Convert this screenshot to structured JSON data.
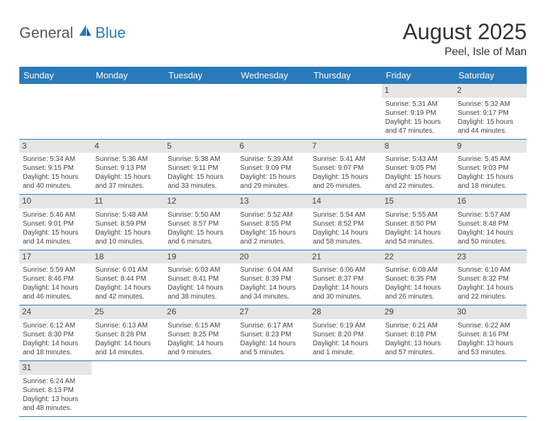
{
  "logo": {
    "text1": "General",
    "text2": "Blue"
  },
  "title": "August 2025",
  "subtitle": "Peel, Isle of Man",
  "colors": {
    "header_bg": "#2a7ab9",
    "header_fg": "#ffffff",
    "daynum_bg": "#e5e5e5",
    "row_border": "#2a7ab9",
    "text": "#444444"
  },
  "dayHeaders": [
    "Sunday",
    "Monday",
    "Tuesday",
    "Wednesday",
    "Thursday",
    "Friday",
    "Saturday"
  ],
  "weeks": [
    [
      null,
      null,
      null,
      null,
      null,
      {
        "n": "1",
        "sr": "Sunrise: 5:31 AM",
        "ss": "Sunset: 9:19 PM",
        "d1": "Daylight: 15 hours",
        "d2": "and 47 minutes."
      },
      {
        "n": "2",
        "sr": "Sunrise: 5:32 AM",
        "ss": "Sunset: 9:17 PM",
        "d1": "Daylight: 15 hours",
        "d2": "and 44 minutes."
      }
    ],
    [
      {
        "n": "3",
        "sr": "Sunrise: 5:34 AM",
        "ss": "Sunset: 9:15 PM",
        "d1": "Daylight: 15 hours",
        "d2": "and 40 minutes."
      },
      {
        "n": "4",
        "sr": "Sunrise: 5:36 AM",
        "ss": "Sunset: 9:13 PM",
        "d1": "Daylight: 15 hours",
        "d2": "and 37 minutes."
      },
      {
        "n": "5",
        "sr": "Sunrise: 5:38 AM",
        "ss": "Sunset: 9:11 PM",
        "d1": "Daylight: 15 hours",
        "d2": "and 33 minutes."
      },
      {
        "n": "6",
        "sr": "Sunrise: 5:39 AM",
        "ss": "Sunset: 9:09 PM",
        "d1": "Daylight: 15 hours",
        "d2": "and 29 minutes."
      },
      {
        "n": "7",
        "sr": "Sunrise: 5:41 AM",
        "ss": "Sunset: 9:07 PM",
        "d1": "Daylight: 15 hours",
        "d2": "and 26 minutes."
      },
      {
        "n": "8",
        "sr": "Sunrise: 5:43 AM",
        "ss": "Sunset: 9:05 PM",
        "d1": "Daylight: 15 hours",
        "d2": "and 22 minutes."
      },
      {
        "n": "9",
        "sr": "Sunrise: 5:45 AM",
        "ss": "Sunset: 9:03 PM",
        "d1": "Daylight: 15 hours",
        "d2": "and 18 minutes."
      }
    ],
    [
      {
        "n": "10",
        "sr": "Sunrise: 5:46 AM",
        "ss": "Sunset: 9:01 PM",
        "d1": "Daylight: 15 hours",
        "d2": "and 14 minutes."
      },
      {
        "n": "11",
        "sr": "Sunrise: 5:48 AM",
        "ss": "Sunset: 8:59 PM",
        "d1": "Daylight: 15 hours",
        "d2": "and 10 minutes."
      },
      {
        "n": "12",
        "sr": "Sunrise: 5:50 AM",
        "ss": "Sunset: 8:57 PM",
        "d1": "Daylight: 15 hours",
        "d2": "and 6 minutes."
      },
      {
        "n": "13",
        "sr": "Sunrise: 5:52 AM",
        "ss": "Sunset: 8:55 PM",
        "d1": "Daylight: 15 hours",
        "d2": "and 2 minutes."
      },
      {
        "n": "14",
        "sr": "Sunrise: 5:54 AM",
        "ss": "Sunset: 8:52 PM",
        "d1": "Daylight: 14 hours",
        "d2": "and 58 minutes."
      },
      {
        "n": "15",
        "sr": "Sunrise: 5:55 AM",
        "ss": "Sunset: 8:50 PM",
        "d1": "Daylight: 14 hours",
        "d2": "and 54 minutes."
      },
      {
        "n": "16",
        "sr": "Sunrise: 5:57 AM",
        "ss": "Sunset: 8:48 PM",
        "d1": "Daylight: 14 hours",
        "d2": "and 50 minutes."
      }
    ],
    [
      {
        "n": "17",
        "sr": "Sunrise: 5:59 AM",
        "ss": "Sunset: 8:46 PM",
        "d1": "Daylight: 14 hours",
        "d2": "and 46 minutes."
      },
      {
        "n": "18",
        "sr": "Sunrise: 6:01 AM",
        "ss": "Sunset: 8:44 PM",
        "d1": "Daylight: 14 hours",
        "d2": "and 42 minutes."
      },
      {
        "n": "19",
        "sr": "Sunrise: 6:03 AM",
        "ss": "Sunset: 8:41 PM",
        "d1": "Daylight: 14 hours",
        "d2": "and 38 minutes."
      },
      {
        "n": "20",
        "sr": "Sunrise: 6:04 AM",
        "ss": "Sunset: 8:39 PM",
        "d1": "Daylight: 14 hours",
        "d2": "and 34 minutes."
      },
      {
        "n": "21",
        "sr": "Sunrise: 6:06 AM",
        "ss": "Sunset: 8:37 PM",
        "d1": "Daylight: 14 hours",
        "d2": "and 30 minutes."
      },
      {
        "n": "22",
        "sr": "Sunrise: 6:08 AM",
        "ss": "Sunset: 8:35 PM",
        "d1": "Daylight: 14 hours",
        "d2": "and 26 minutes."
      },
      {
        "n": "23",
        "sr": "Sunrise: 6:10 AM",
        "ss": "Sunset: 8:32 PM",
        "d1": "Daylight: 14 hours",
        "d2": "and 22 minutes."
      }
    ],
    [
      {
        "n": "24",
        "sr": "Sunrise: 6:12 AM",
        "ss": "Sunset: 8:30 PM",
        "d1": "Daylight: 14 hours",
        "d2": "and 18 minutes."
      },
      {
        "n": "25",
        "sr": "Sunrise: 6:13 AM",
        "ss": "Sunset: 8:28 PM",
        "d1": "Daylight: 14 hours",
        "d2": "and 14 minutes."
      },
      {
        "n": "26",
        "sr": "Sunrise: 6:15 AM",
        "ss": "Sunset: 8:25 PM",
        "d1": "Daylight: 14 hours",
        "d2": "and 9 minutes."
      },
      {
        "n": "27",
        "sr": "Sunrise: 6:17 AM",
        "ss": "Sunset: 8:23 PM",
        "d1": "Daylight: 14 hours",
        "d2": "and 5 minutes."
      },
      {
        "n": "28",
        "sr": "Sunrise: 6:19 AM",
        "ss": "Sunset: 8:20 PM",
        "d1": "Daylight: 14 hours",
        "d2": "and 1 minute."
      },
      {
        "n": "29",
        "sr": "Sunrise: 6:21 AM",
        "ss": "Sunset: 8:18 PM",
        "d1": "Daylight: 13 hours",
        "d2": "and 57 minutes."
      },
      {
        "n": "30",
        "sr": "Sunrise: 6:22 AM",
        "ss": "Sunset: 8:16 PM",
        "d1": "Daylight: 13 hours",
        "d2": "and 53 minutes."
      }
    ],
    [
      {
        "n": "31",
        "sr": "Sunrise: 6:24 AM",
        "ss": "Sunset: 8:13 PM",
        "d1": "Daylight: 13 hours",
        "d2": "and 48 minutes."
      },
      null,
      null,
      null,
      null,
      null,
      null
    ]
  ]
}
